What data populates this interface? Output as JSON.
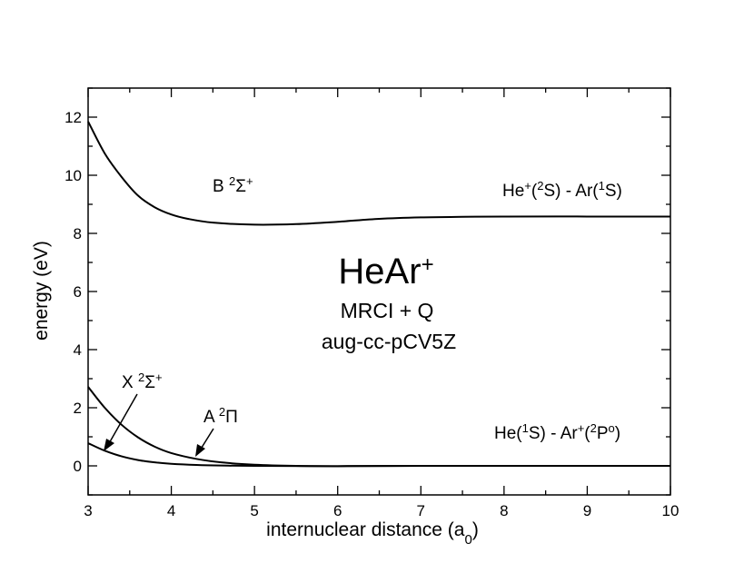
{
  "chart_data": {
    "type": "line",
    "title": {
      "main": "HeAr",
      "sup": "+"
    },
    "subtitles": [
      "MRCI + Q",
      "aug-cc-pCV5Z"
    ],
    "xlabel": {
      "text": "internuclear distance (a",
      "sub": "0",
      "close": ")"
    },
    "ylabel": "energy (eV)",
    "xlim": [
      3,
      10
    ],
    "ylim": [
      -1,
      13
    ],
    "xticks": [
      3,
      4,
      5,
      6,
      7,
      8,
      9,
      10
    ],
    "yticks": [
      0,
      2,
      4,
      6,
      8,
      10,
      12
    ],
    "x_minor_step": 0.5,
    "y_minor_step": 1,
    "grid": false,
    "series": [
      {
        "name": "B ²Σ⁺",
        "x": [
          3.0,
          3.2,
          3.4,
          3.6,
          3.8,
          4.0,
          4.2,
          4.5,
          5.0,
          5.5,
          6.0,
          6.5,
          7.0,
          7.5,
          8.0,
          9.0,
          10.0
        ],
        "y": [
          11.85,
          10.75,
          9.95,
          9.3,
          8.9,
          8.65,
          8.5,
          8.37,
          8.3,
          8.32,
          8.4,
          8.5,
          8.55,
          8.57,
          8.58,
          8.58,
          8.58
        ]
      },
      {
        "name": "A ²Π",
        "x": [
          3.0,
          3.2,
          3.4,
          3.6,
          3.8,
          4.0,
          4.3,
          4.6,
          5.0,
          5.5,
          6.0,
          7.0,
          8.0,
          10.0
        ],
        "y": [
          2.72,
          2.0,
          1.42,
          0.98,
          0.66,
          0.44,
          0.24,
          0.12,
          0.04,
          0.0,
          -0.01,
          0.0,
          0.0,
          0.0
        ]
      },
      {
        "name": "X ²Σ⁺",
        "x": [
          3.0,
          3.2,
          3.4,
          3.6,
          3.8,
          4.0,
          4.3,
          4.6,
          5.0,
          6.0,
          7.0,
          8.0,
          10.0
        ],
        "y": [
          0.78,
          0.52,
          0.33,
          0.2,
          0.12,
          0.07,
          0.03,
          0.01,
          0.0,
          -0.01,
          0.0,
          0.0,
          0.0
        ]
      }
    ],
    "annotations": {
      "B_label": {
        "base": "B ",
        "sup1": "2",
        "sym": "Σ",
        "sup2": "+"
      },
      "A_label": {
        "base": "A ",
        "sup1": "2",
        "sym": "Π"
      },
      "X_label": {
        "base": "X ",
        "sup1": "2",
        "sym": "Σ",
        "sup2": "+"
      },
      "upper_asymptote": {
        "p1": "He",
        "s1": "+",
        "p2": "(",
        "s2": "2",
        "p3": "S) - Ar(",
        "s3": "1",
        "p4": "S)"
      },
      "lower_asymptote": {
        "p1": "He(",
        "s1": "1",
        "p2": "S) - Ar",
        "s2": "+",
        "p3": "(",
        "s3": "2",
        "p4": "P",
        "s4": "o",
        "p5": ")"
      }
    }
  }
}
